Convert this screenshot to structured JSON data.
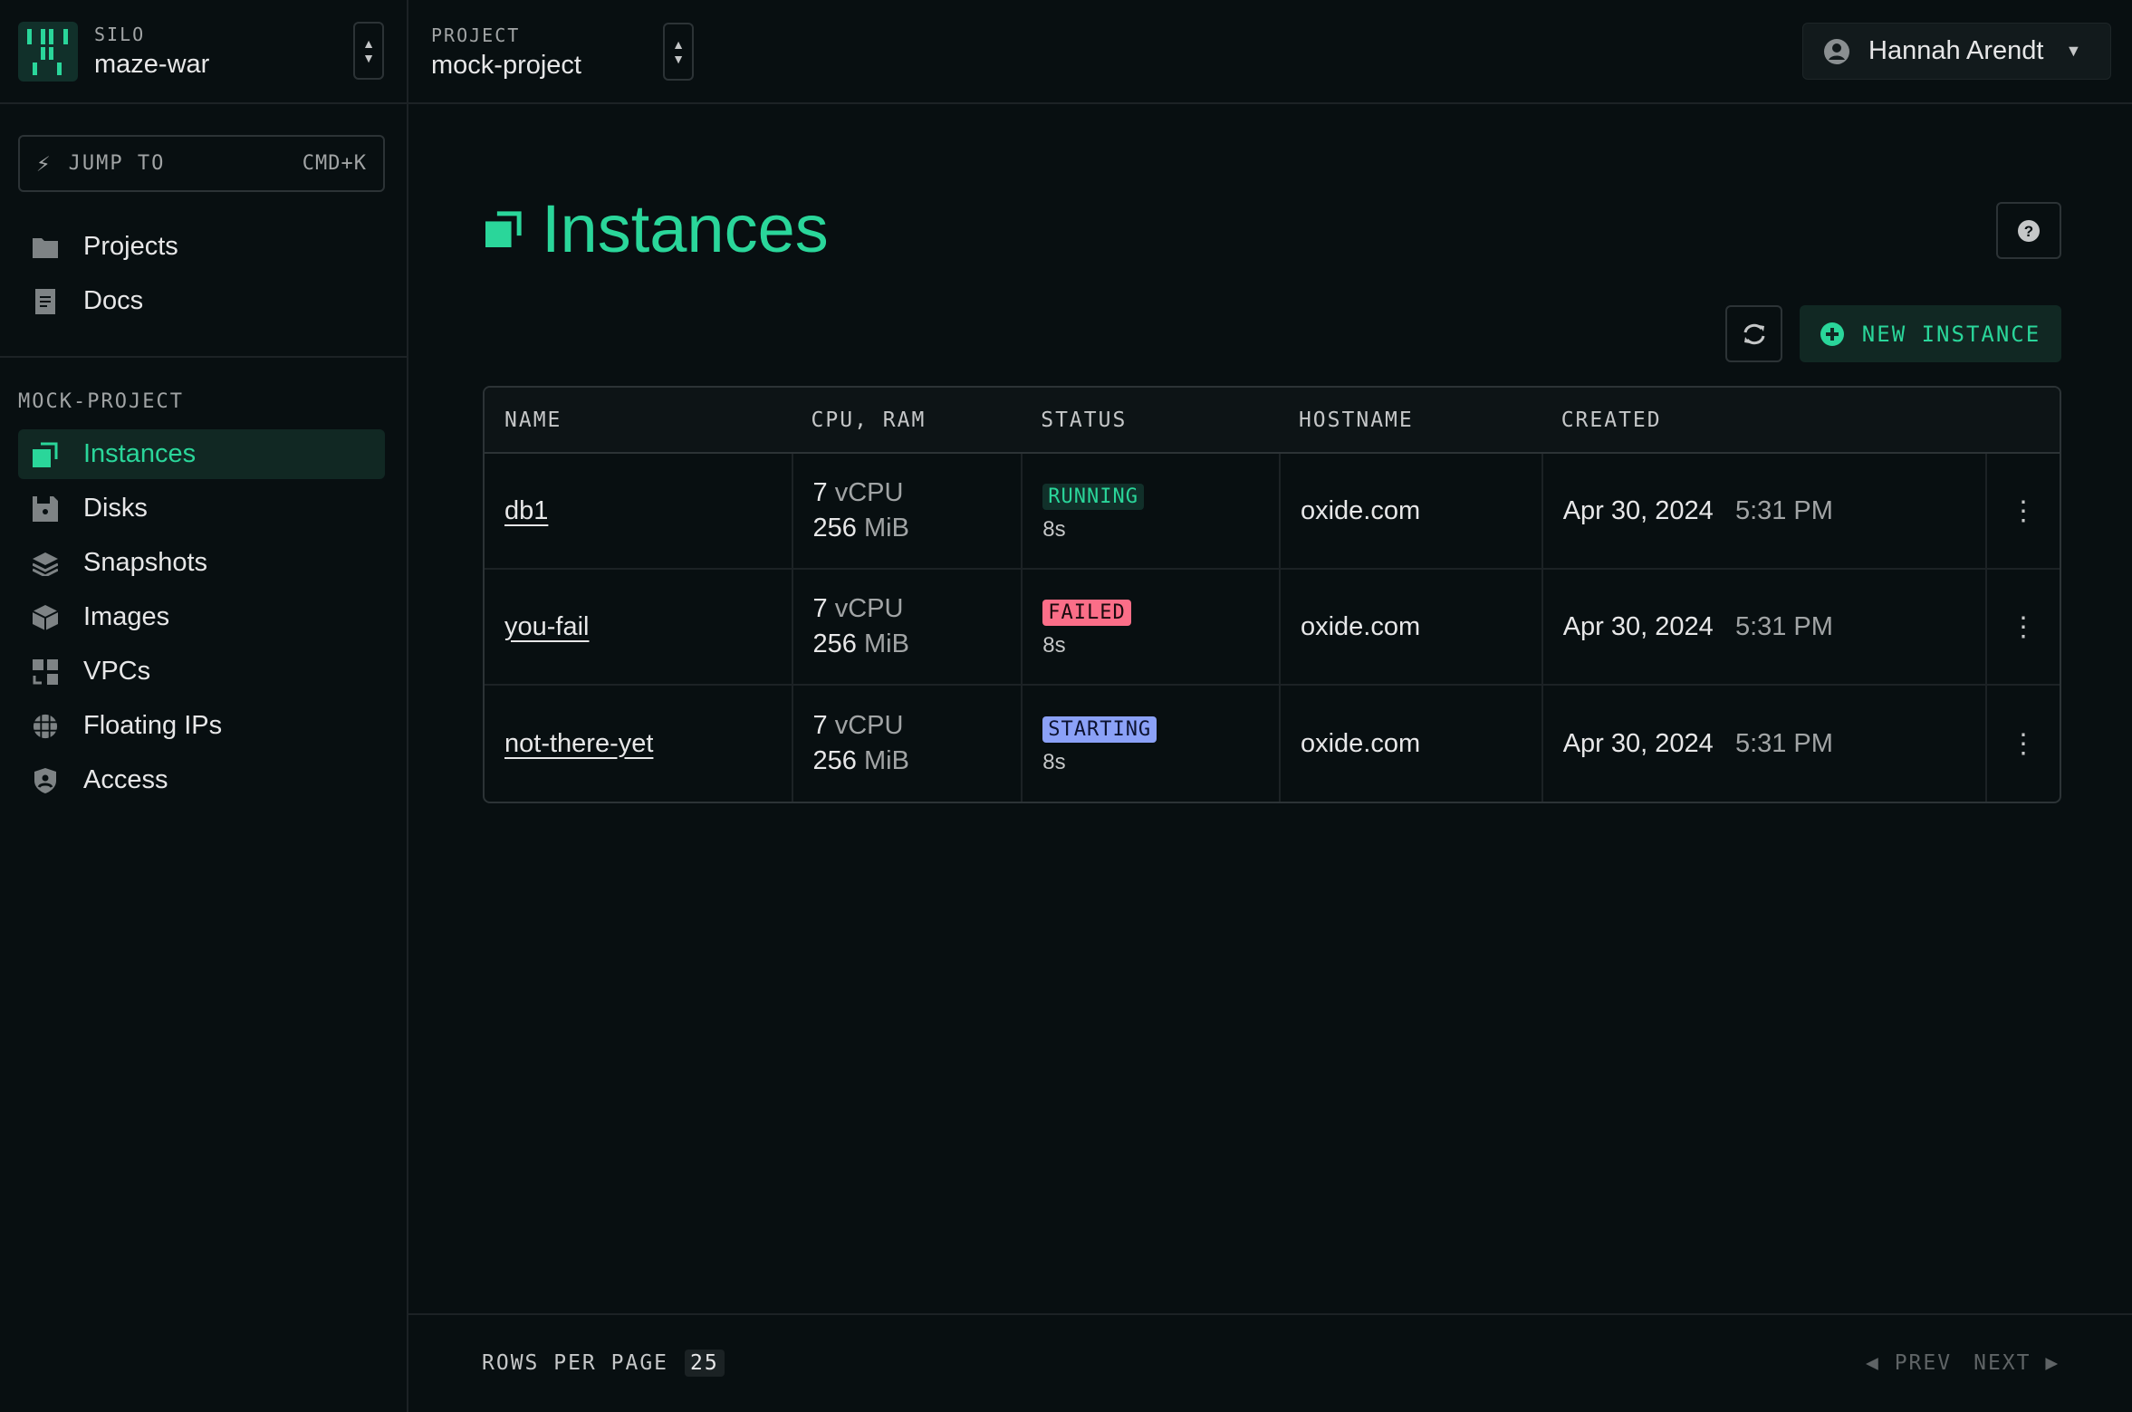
{
  "silo": {
    "label": "SILO",
    "value": "maze-war"
  },
  "project": {
    "label": "PROJECT",
    "value": "mock-project"
  },
  "jump": {
    "label": "JUMP TO",
    "shortcut": "CMD+K"
  },
  "global_nav": [
    {
      "label": "Projects",
      "icon": "folder-icon"
    },
    {
      "label": "Docs",
      "icon": "document-icon"
    }
  ],
  "section_label": "MOCK-PROJECT",
  "project_nav": [
    {
      "label": "Instances",
      "icon": "instances-icon",
      "active": true
    },
    {
      "label": "Disks",
      "icon": "disk-icon"
    },
    {
      "label": "Snapshots",
      "icon": "snapshots-icon"
    },
    {
      "label": "Images",
      "icon": "images-icon"
    },
    {
      "label": "VPCs",
      "icon": "vpc-icon"
    },
    {
      "label": "Floating IPs",
      "icon": "globe-icon"
    },
    {
      "label": "Access",
      "icon": "shield-icon"
    }
  ],
  "user": {
    "name": "Hannah Arendt"
  },
  "page": {
    "title": "Instances",
    "new_button": "NEW INSTANCE"
  },
  "table": {
    "headers": [
      "NAME",
      "CPU, RAM",
      "STATUS",
      "HOSTNAME",
      "CREATED"
    ],
    "rows": [
      {
        "name": "db1",
        "cpu": "7",
        "cpu_unit": "vCPU",
        "ram": "256",
        "ram_unit": "MiB",
        "status": "RUNNING",
        "status_age": "8s",
        "hostname": "oxide.com",
        "date": "Apr 30, 2024",
        "time": "5:31 PM"
      },
      {
        "name": "you-fail",
        "cpu": "7",
        "cpu_unit": "vCPU",
        "ram": "256",
        "ram_unit": "MiB",
        "status": "FAILED",
        "status_age": "8s",
        "hostname": "oxide.com",
        "date": "Apr 30, 2024",
        "time": "5:31 PM"
      },
      {
        "name": "not-there-yet",
        "cpu": "7",
        "cpu_unit": "vCPU",
        "ram": "256",
        "ram_unit": "MiB",
        "status": "STARTING",
        "status_age": "8s",
        "hostname": "oxide.com",
        "date": "Apr 30, 2024",
        "time": "5:31 PM"
      }
    ]
  },
  "footer": {
    "rows_per_page_label": "ROWS PER PAGE",
    "rows_per_page": "25",
    "prev": "PREV",
    "next": "NEXT"
  },
  "colors": {
    "accent": "#2ad69a",
    "running": "#2ad69a",
    "failed": "#fb6e88",
    "starting": "#8ba1f7",
    "background": "#080f11"
  }
}
